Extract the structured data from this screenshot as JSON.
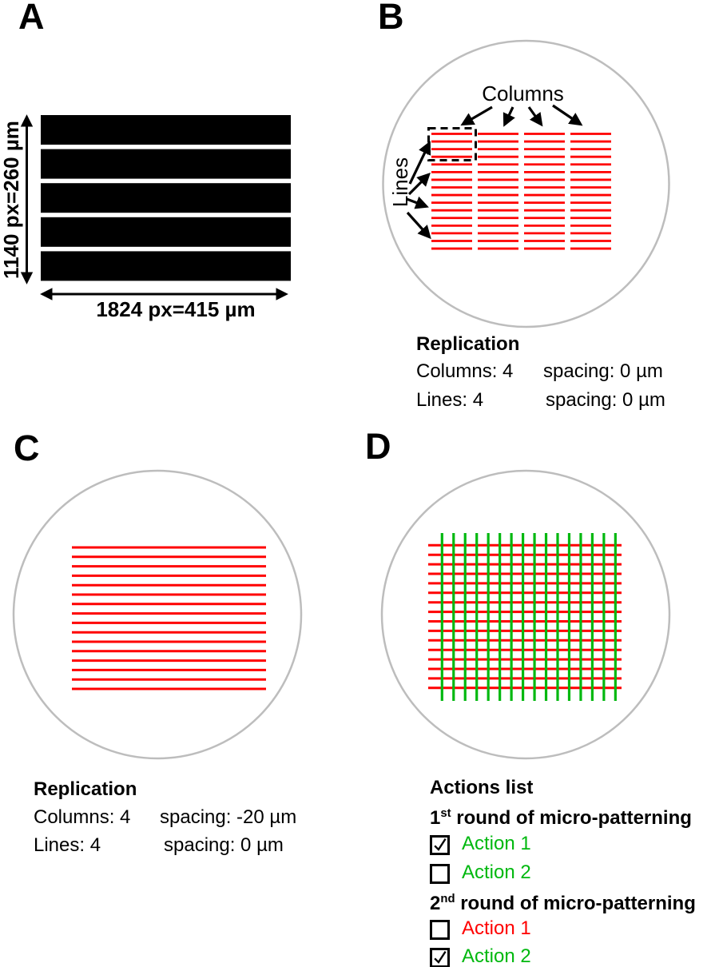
{
  "colors": {
    "red": "#FF0000",
    "green": "#00B80F",
    "black": "#000000",
    "circle_gray": "#BDBDBD"
  },
  "panel_a": {
    "label": "A",
    "height_label": "1140 px=260 µm",
    "width_label": "1824 px=415 µm",
    "bars": {
      "count": 5
    }
  },
  "panel_b": {
    "label": "B",
    "columns_annotation": "Columns",
    "lines_annotation": "Lines",
    "caption": {
      "title": "Replication",
      "columns_label": "Columns: 4",
      "columns_spacing": "spacing: 0 µm",
      "lines_label": "Lines: 4",
      "lines_spacing": "spacing: 0 µm"
    },
    "pattern": {
      "columns": 4,
      "lines_per_column": 16,
      "color": "#FF0000"
    }
  },
  "panel_c": {
    "label": "C",
    "caption": {
      "title": "Replication",
      "columns_label": "Columns: 4",
      "columns_spacing": "spacing: -20 µm",
      "lines_label": "Lines: 4",
      "lines_spacing": "spacing: 0 µm"
    },
    "pattern": {
      "lines": 16,
      "color": "#FF0000"
    }
  },
  "panel_d": {
    "label": "D",
    "caption_title": "Actions list",
    "rounds": [
      {
        "num": "1",
        "sup": "st",
        "rest": " round of micro-patterning",
        "actions": [
          {
            "label": "Action 1",
            "checked": true,
            "color": "#00B80F"
          },
          {
            "label": "Action 2",
            "checked": false,
            "color": "#00B80F"
          }
        ]
      },
      {
        "num": "2",
        "sup": "nd",
        "rest": " round of micro-patterning",
        "actions": [
          {
            "label": "Action 1",
            "checked": false,
            "color": "#FF0000"
          },
          {
            "label": "Action 2",
            "checked": true,
            "color": "#00B80F"
          }
        ]
      }
    ],
    "pattern": {
      "red_lines": 16,
      "green_lines": 16
    }
  }
}
